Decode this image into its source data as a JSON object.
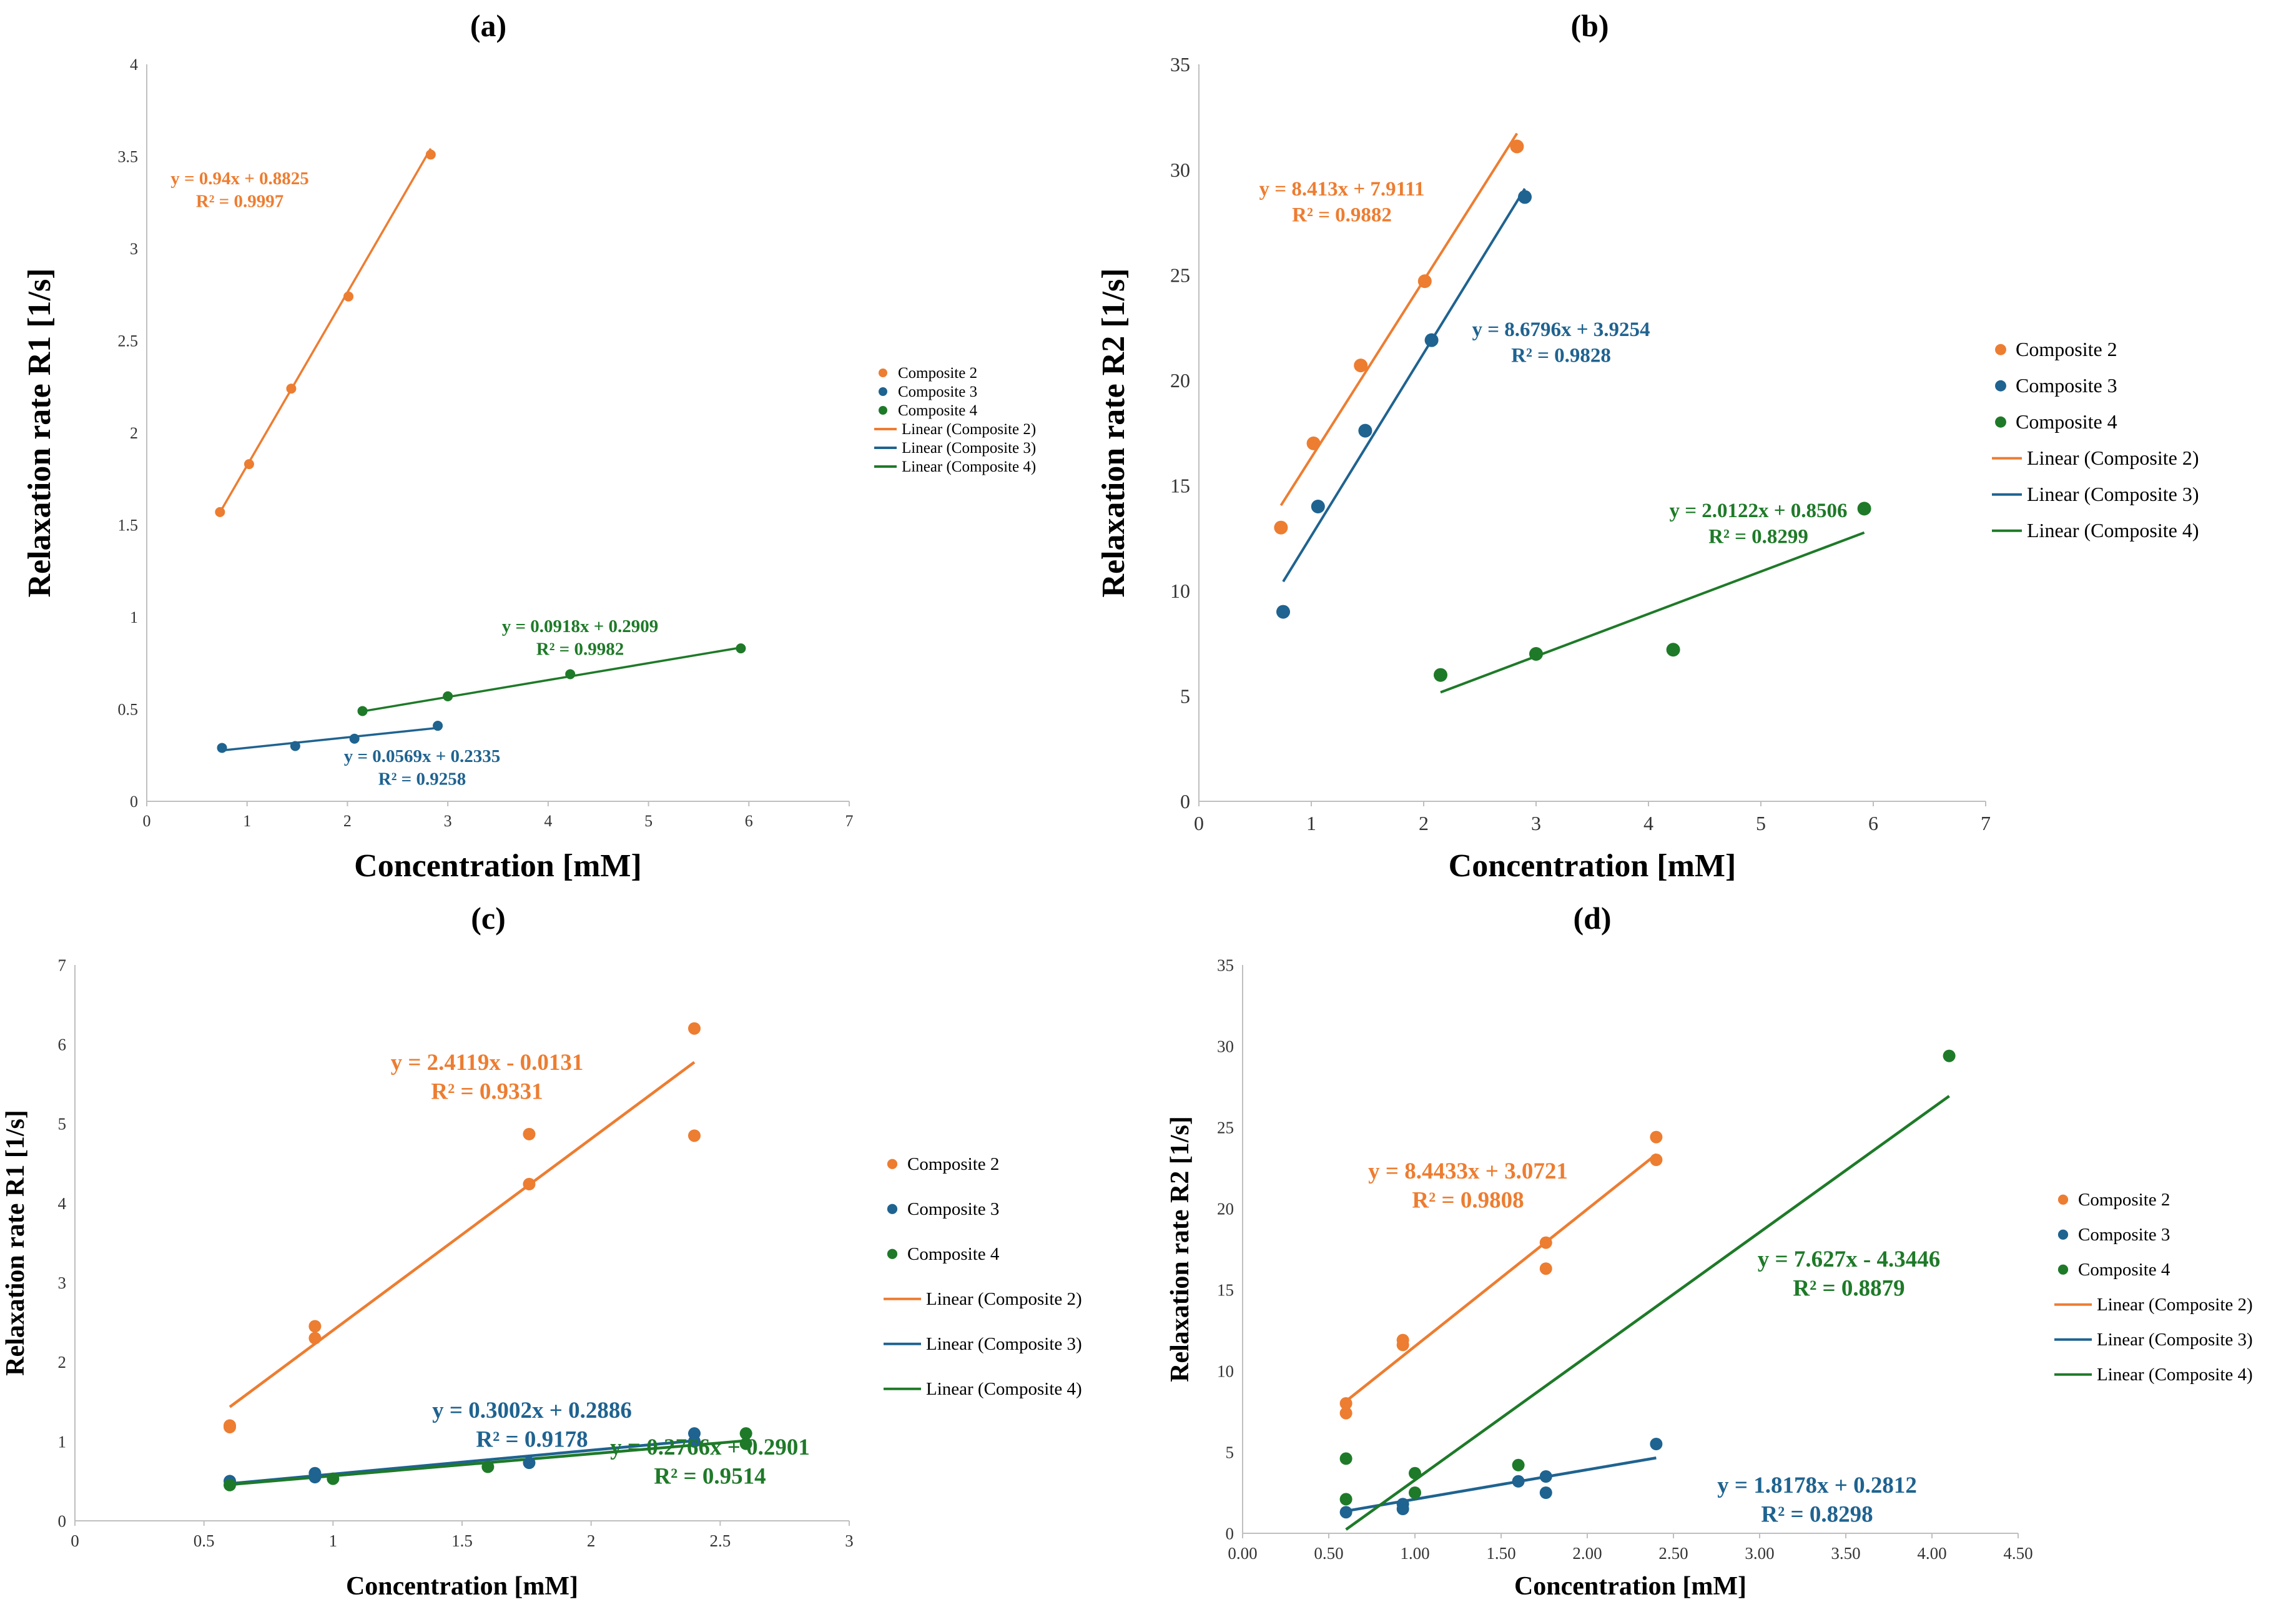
{
  "colors": {
    "composite_2": "#ED7D31",
    "composite_3": "#1F6390",
    "composite_4": "#1E7A28",
    "axis": "#BFBFBF"
  },
  "chart_data": [
    {
      "id": "a",
      "type": "scatter",
      "title": "(a)",
      "xlabel": "Concentration [mM]",
      "ylabel": "Relaxation rate R1 [1/s]",
      "xlim": [
        0,
        7
      ],
      "ylim": [
        0,
        4
      ],
      "xticks": [
        "0",
        "1",
        "2",
        "3",
        "4",
        "5",
        "6",
        "7"
      ],
      "yticks": [
        "0",
        "0.5",
        "1",
        "1.5",
        "2",
        "2.5",
        "3",
        "3.5",
        "4"
      ],
      "legend": [
        "Composite 2",
        "Composite 3",
        "Composite 4",
        "Linear (Composite 2)",
        "Linear (Composite 3)",
        "Linear (Composite 4)"
      ],
      "series": [
        {
          "name": "Composite 2",
          "x": [
            0.73,
            1.02,
            1.44,
            2.01,
            2.83
          ],
          "y": [
            1.57,
            1.83,
            2.24,
            2.74,
            3.51
          ],
          "trend": {
            "slope": 0.94,
            "intercept": 0.8825,
            "x": [
              0.73,
              2.83
            ]
          },
          "equation": "y = 0.94x + 0.8825",
          "r2": "R² = 0.9997"
        },
        {
          "name": "Composite 3",
          "x": [
            0.75,
            1.48,
            2.07,
            2.9
          ],
          "y": [
            0.29,
            0.3,
            0.34,
            0.41
          ],
          "trend": {
            "slope": 0.0569,
            "intercept": 0.2335,
            "x": [
              0.75,
              2.9
            ]
          },
          "equation": "y = 0.0569x + 0.2335",
          "r2": "R² = 0.9258"
        },
        {
          "name": "Composite 4",
          "x": [
            2.15,
            3.0,
            4.22,
            5.92
          ],
          "y": [
            0.49,
            0.57,
            0.69,
            0.83
          ],
          "trend": {
            "slope": 0.0918,
            "intercept": 0.2909,
            "x": [
              2.15,
              5.92
            ]
          },
          "equation": "y = 0.0918x + 0.2909",
          "r2": "R² = 0.9982"
        }
      ]
    },
    {
      "id": "b",
      "type": "scatter",
      "title": "(b)",
      "xlabel": "Concentration [mM]",
      "ylabel": "Relaxation rate R2 [1/s]",
      "xlim": [
        0,
        7
      ],
      "ylim": [
        0,
        35
      ],
      "xticks": [
        "0",
        "1",
        "2",
        "3",
        "4",
        "5",
        "6",
        "7"
      ],
      "yticks": [
        "0",
        "5",
        "10",
        "15",
        "20",
        "25",
        "30",
        "35"
      ],
      "legend": [
        "Composite 2",
        "Composite 3",
        "Composite 4",
        "Linear (Composite 2)",
        "Linear (Composite 3)",
        "Linear (Composite 4)"
      ],
      "series": [
        {
          "name": "Composite 2",
          "x": [
            0.73,
            1.02,
            1.44,
            2.01,
            2.83
          ],
          "y": [
            13.0,
            17.0,
            20.7,
            24.7,
            31.1
          ],
          "trend": {
            "slope": 8.413,
            "intercept": 7.9111,
            "x": [
              0.73,
              2.83
            ]
          },
          "equation": "y = 8.413x + 7.9111",
          "r2": "R² = 0.9882"
        },
        {
          "name": "Composite 3",
          "x": [
            0.75,
            1.06,
            1.48,
            2.07,
            2.9
          ],
          "y": [
            9.0,
            14.0,
            17.6,
            21.9,
            28.7
          ],
          "trend": {
            "slope": 8.6796,
            "intercept": 3.9254,
            "x": [
              0.75,
              2.9
            ]
          },
          "equation": "y = 8.6796x + 3.9254",
          "r2": "R² = 0.9828"
        },
        {
          "name": "Composite 4",
          "x": [
            2.15,
            3.0,
            4.22,
            5.92
          ],
          "y": [
            6.0,
            7.0,
            7.2,
            13.9
          ],
          "trend": {
            "slope": 2.0122,
            "intercept": 0.8506,
            "x": [
              2.15,
              5.92
            ]
          },
          "equation": "y = 2.0122x + 0.8506",
          "r2": "R² = 0.8299"
        }
      ]
    },
    {
      "id": "c",
      "type": "scatter",
      "title": "(c)",
      "xlabel": "Concentration [mM]",
      "ylabel": "Relaxation rate R1 [1/s]",
      "xlim": [
        0,
        3
      ],
      "ylim": [
        0,
        7
      ],
      "xticks": [
        "0",
        "0.5",
        "1",
        "1.5",
        "2",
        "2.5",
        "3"
      ],
      "yticks": [
        "0",
        "1",
        "2",
        "3",
        "4",
        "5",
        "6",
        "7"
      ],
      "legend": [
        "Composite 2",
        "Composite 3",
        "Composite 4",
        "Linear (Composite 2)",
        "Linear (Composite 3)",
        "Linear (Composite 4)"
      ],
      "series": [
        {
          "name": "Composite 2",
          "x": [
            0.6,
            0.6,
            0.93,
            0.93,
            1.76,
            1.76,
            2.4,
            2.4
          ],
          "y": [
            1.2,
            1.18,
            2.45,
            2.3,
            4.87,
            4.24,
            6.2,
            4.85
          ],
          "trend": {
            "slope": 2.4119,
            "intercept": -0.0131,
            "x": [
              0.6,
              2.4
            ]
          },
          "equation": "y = 2.4119x - 0.0131",
          "r2": "R² = 0.9331"
        },
        {
          "name": "Composite 3",
          "x": [
            0.6,
            0.93,
            0.93,
            1.76,
            2.4,
            2.4
          ],
          "y": [
            0.5,
            0.6,
            0.55,
            0.73,
            1.1,
            1.0
          ],
          "trend": {
            "slope": 0.3002,
            "intercept": 0.2886,
            "x": [
              0.6,
              2.4
            ]
          },
          "equation": "y = 0.3002x + 0.2886",
          "r2": "R² = 0.9178"
        },
        {
          "name": "Composite 4",
          "x": [
            0.6,
            1.0,
            1.6,
            2.6,
            2.6
          ],
          "y": [
            0.45,
            0.53,
            0.68,
            1.1,
            0.97
          ],
          "trend": {
            "slope": 0.2766,
            "intercept": 0.2901,
            "x": [
              0.6,
              2.6
            ]
          },
          "equation": "y = 0.2766x + 0.2901",
          "r2": "R² = 0.9514"
        }
      ]
    },
    {
      "id": "d",
      "type": "scatter",
      "title": "(d)",
      "xlabel": "Concentration [mM]",
      "ylabel": "Relaxation rate R2 [1/s]",
      "xlim": [
        0,
        4.5
      ],
      "ylim": [
        0,
        35
      ],
      "xticks": [
        "0.00",
        "0.50",
        "1.00",
        "1.50",
        "2.00",
        "2.50",
        "3.00",
        "3.50",
        "4.00",
        "4.50"
      ],
      "yticks": [
        "0",
        "5",
        "10",
        "15",
        "20",
        "25",
        "30",
        "35"
      ],
      "legend": [
        "Composite 2",
        "Composite 3",
        "Composite 4",
        "Linear (Composite 2)",
        "Linear (Composite 3)",
        "Linear (Composite 4)"
      ],
      "series": [
        {
          "name": "Composite 2",
          "x": [
            0.6,
            0.6,
            0.93,
            0.93,
            1.76,
            1.76,
            2.4,
            2.4
          ],
          "y": [
            8.0,
            7.4,
            11.9,
            11.6,
            17.9,
            16.3,
            24.4,
            23.0
          ],
          "trend": {
            "slope": 8.4433,
            "intercept": 3.0721,
            "x": [
              0.6,
              2.4
            ]
          },
          "equation": "y = 8.4433x + 3.0721",
          "r2": "R² = 0.9808"
        },
        {
          "name": "Composite 3",
          "x": [
            0.6,
            0.93,
            0.93,
            1.6,
            1.76,
            1.76,
            2.4
          ],
          "y": [
            1.3,
            1.8,
            1.5,
            3.2,
            3.5,
            2.5,
            5.5
          ],
          "trend": {
            "slope": 1.8178,
            "intercept": 0.2812,
            "x": [
              0.6,
              2.4
            ]
          },
          "equation": "y = 1.8178x + 0.2812",
          "r2": "R² = 0.8298"
        },
        {
          "name": "Composite 4",
          "x": [
            0.6,
            0.6,
            1.0,
            1.0,
            1.6,
            4.1
          ],
          "y": [
            4.6,
            2.1,
            3.7,
            2.5,
            4.2,
            29.4
          ],
          "trend": {
            "slope": 7.627,
            "intercept": -4.3446,
            "x": [
              0.6,
              4.1
            ]
          },
          "equation": "y = 7.627x - 4.3446",
          "r2": "R² = 0.8879"
        }
      ]
    }
  ]
}
